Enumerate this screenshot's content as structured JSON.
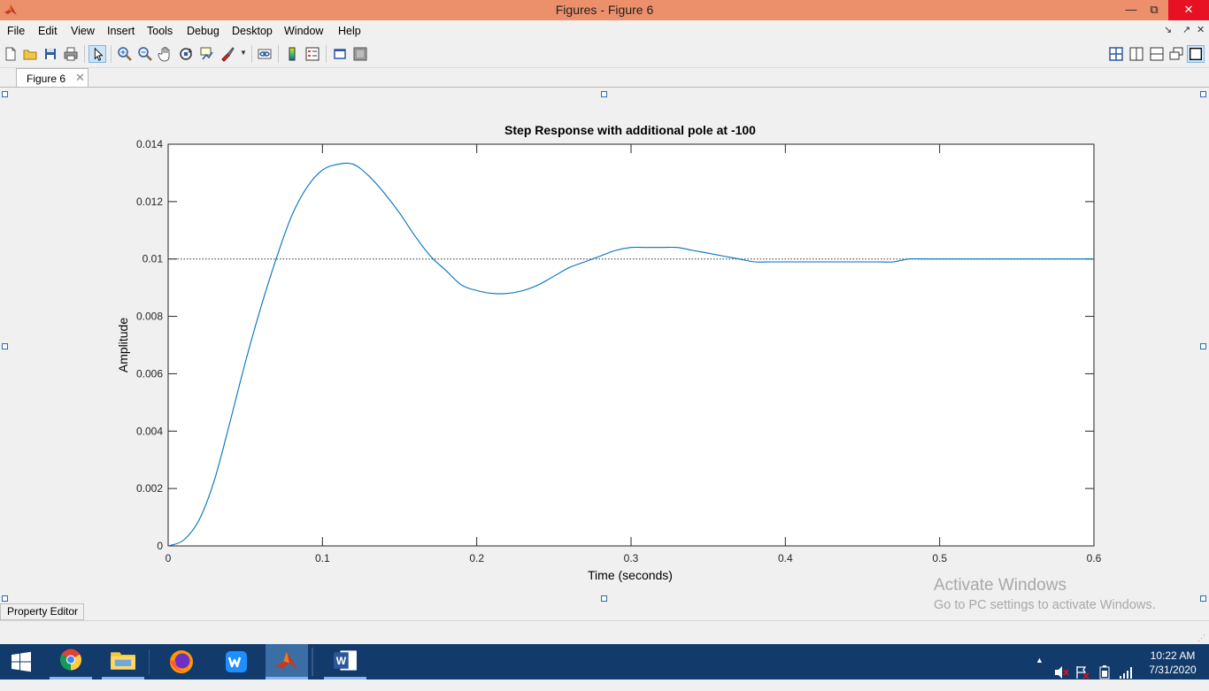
{
  "window": {
    "title": "Figures - Figure 6"
  },
  "menu": [
    "File",
    "Edit",
    "View",
    "Insert",
    "Tools",
    "Debug",
    "Desktop",
    "Window",
    "Help"
  ],
  "toolbar": {
    "buttons": [
      "new-figure",
      "open-file",
      "save-figure",
      "print-figure",
      "edit-plot",
      "zoom-in",
      "zoom-out",
      "pan",
      "rotate-3d",
      "data-cursor",
      "brush",
      "link-plot",
      "insert-colorbar",
      "insert-legend",
      "hide-plot-tools",
      "show-plot-tools"
    ]
  },
  "tabs": [
    {
      "label": "Figure 6"
    }
  ],
  "chart_data": {
    "type": "line",
    "title": "Step Response with additional pole at -100",
    "xlabel": "Time (seconds)",
    "ylabel": "Amplitude",
    "xlim": [
      0,
      0.6
    ],
    "ylim": [
      0,
      0.014
    ],
    "xticks": [
      "0",
      "0.1",
      "0.2",
      "0.3",
      "0.4",
      "0.5",
      "0.6"
    ],
    "yticks": [
      "0",
      "0.002",
      "0.004",
      "0.006",
      "0.008",
      "0.01",
      "0.012",
      "0.014"
    ],
    "steady_state": 0.01,
    "series": [
      {
        "color": "#0072bd",
        "x": [
          0,
          0.01,
          0.02,
          0.03,
          0.04,
          0.05,
          0.06,
          0.07,
          0.08,
          0.09,
          0.1,
          0.11,
          0.12,
          0.13,
          0.14,
          0.15,
          0.16,
          0.17,
          0.18,
          0.19,
          0.2,
          0.21,
          0.22,
          0.23,
          0.24,
          0.25,
          0.26,
          0.27,
          0.28,
          0.29,
          0.3,
          0.31,
          0.32,
          0.33,
          0.34,
          0.35,
          0.36,
          0.37,
          0.38,
          0.39,
          0.4,
          0.41,
          0.42,
          0.43,
          0.44,
          0.45,
          0.46,
          0.47,
          0.48,
          0.49,
          0.5,
          0.51,
          0.52,
          0.53,
          0.54,
          0.55,
          0.56,
          0.57,
          0.58,
          0.59,
          0.6
        ],
        "y": [
          0,
          0.0002,
          0.0009,
          0.0023,
          0.0043,
          0.0064,
          0.0083,
          0.01,
          0.0115,
          0.0125,
          0.0131,
          0.0133,
          0.0133,
          0.0129,
          0.0123,
          0.0116,
          0.0108,
          0.0101,
          0.0096,
          0.0091,
          0.0089,
          0.0088,
          0.0088,
          0.0089,
          0.0091,
          0.0094,
          0.0097,
          0.0099,
          0.0101,
          0.0103,
          0.0104,
          0.0104,
          0.0104,
          0.0104,
          0.0103,
          0.0102,
          0.0101,
          0.01,
          0.0099,
          0.0099,
          0.0099,
          0.0099,
          0.0099,
          0.0099,
          0.0099,
          0.0099,
          0.0099,
          0.0099,
          0.01,
          0.01,
          0.01,
          0.01,
          0.01,
          0.01,
          0.01,
          0.01,
          0.01,
          0.01,
          0.01,
          0.01,
          0.01
        ]
      }
    ]
  },
  "property_editor": {
    "label": "Property Editor"
  },
  "watermark": {
    "line1": "Activate Windows",
    "line2": "Go to PC settings to activate Windows."
  },
  "taskbar": {
    "apps": [
      "windows-start",
      "chrome",
      "file-explorer",
      "firefox",
      "wps-office",
      "matlab",
      "word"
    ],
    "time": "10:22 AM",
    "date": "7/31/2020"
  }
}
